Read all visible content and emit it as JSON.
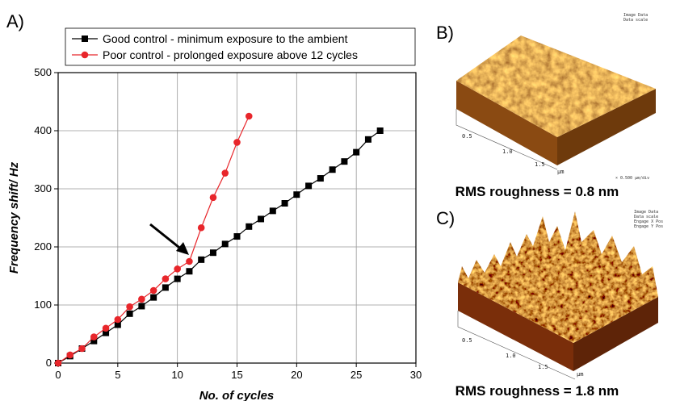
{
  "chart_data": {
    "type": "line",
    "panel_label": "A)",
    "x_label": "No. of cycles",
    "y_label": "Frequency shift/ Hz",
    "x": [
      0,
      1,
      2,
      3,
      4,
      5,
      6,
      7,
      8,
      9,
      10,
      11,
      12,
      13,
      14,
      15,
      16,
      17,
      18,
      19,
      20,
      21,
      22,
      23,
      24,
      25,
      26,
      27
    ],
    "series": [
      {
        "name": "Good control - minimum exposure to the ambient",
        "color": "#000000",
        "marker": "square",
        "values": [
          0,
          12,
          25,
          38,
          52,
          66,
          85,
          98,
          113,
          130,
          145,
          158,
          178,
          190,
          205,
          218,
          235,
          248,
          262,
          275,
          290,
          305,
          318,
          333,
          347,
          363,
          385,
          400
        ]
      },
      {
        "name": "Poor control - prolonged exposure above 12 cycles",
        "color": "#e8262b",
        "marker": "circle",
        "values": [
          0,
          14,
          25,
          45,
          60,
          75,
          97,
          110,
          125,
          145,
          162,
          175,
          233,
          285,
          327,
          380,
          425,
          null,
          null,
          null,
          null,
          null,
          null,
          null,
          null,
          null,
          null,
          null
        ]
      }
    ],
    "xlim": [
      0,
      30
    ],
    "xticks": [
      0,
      5,
      10,
      15,
      20,
      25,
      30
    ],
    "ylim": [
      0,
      500
    ],
    "yticks": [
      0,
      100,
      200,
      300,
      400,
      500
    ],
    "grid": true,
    "legend": "top"
  },
  "panels": {
    "b": {
      "label": "B)",
      "caption": "RMS roughness = 0.8 nm",
      "info": [
        "Image Data",
        "Data scale"
      ],
      "axis": [
        "0.5",
        "1.0",
        "1.5",
        "µm"
      ],
      "scale": "× 0.500 µm/div"
    },
    "c": {
      "label": "C)",
      "caption": "RMS roughness = 1.8 nm",
      "info": [
        "Image Data",
        "Data scale",
        "Engage X Pos",
        "Engage Y Pos"
      ],
      "axis": [
        "0.5",
        "1.0",
        "1.5",
        "µm"
      ]
    }
  }
}
